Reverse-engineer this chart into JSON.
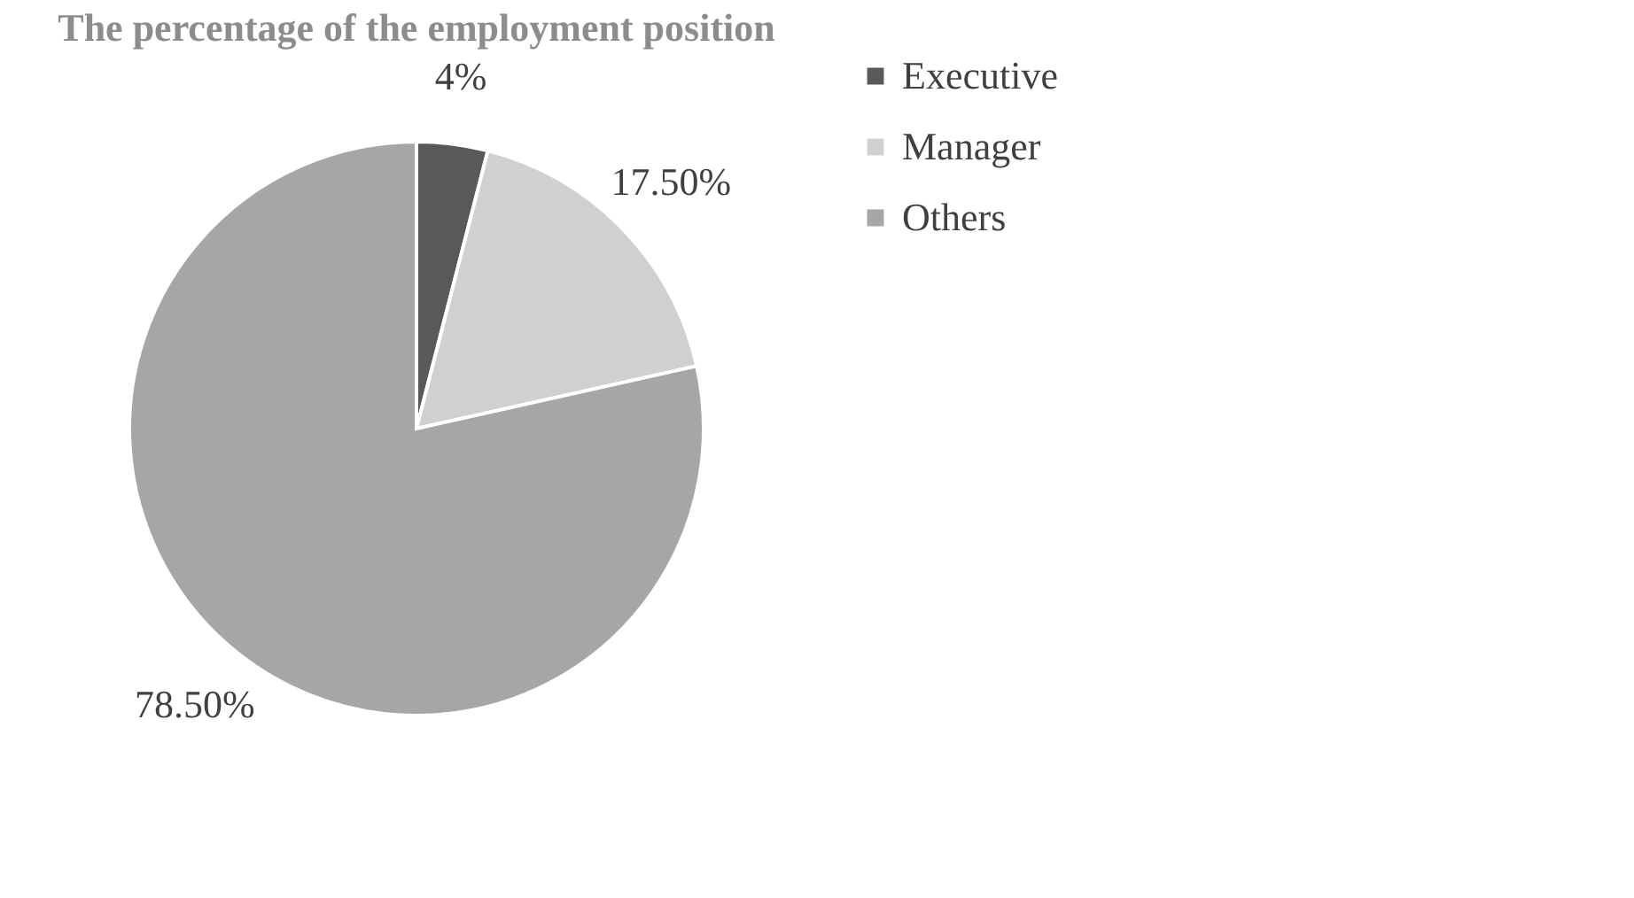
{
  "chart_data": {
    "type": "pie",
    "title": "The percentage of the employment position",
    "categories": [
      "Executive",
      "Manager",
      "Others"
    ],
    "values": [
      4,
      17.5,
      78.5
    ],
    "colors": [
      "#595959",
      "#d0d0d0",
      "#a6a6a6"
    ],
    "value_labels": [
      "4%",
      "17.50%",
      "78.50%"
    ],
    "legend": "right"
  }
}
